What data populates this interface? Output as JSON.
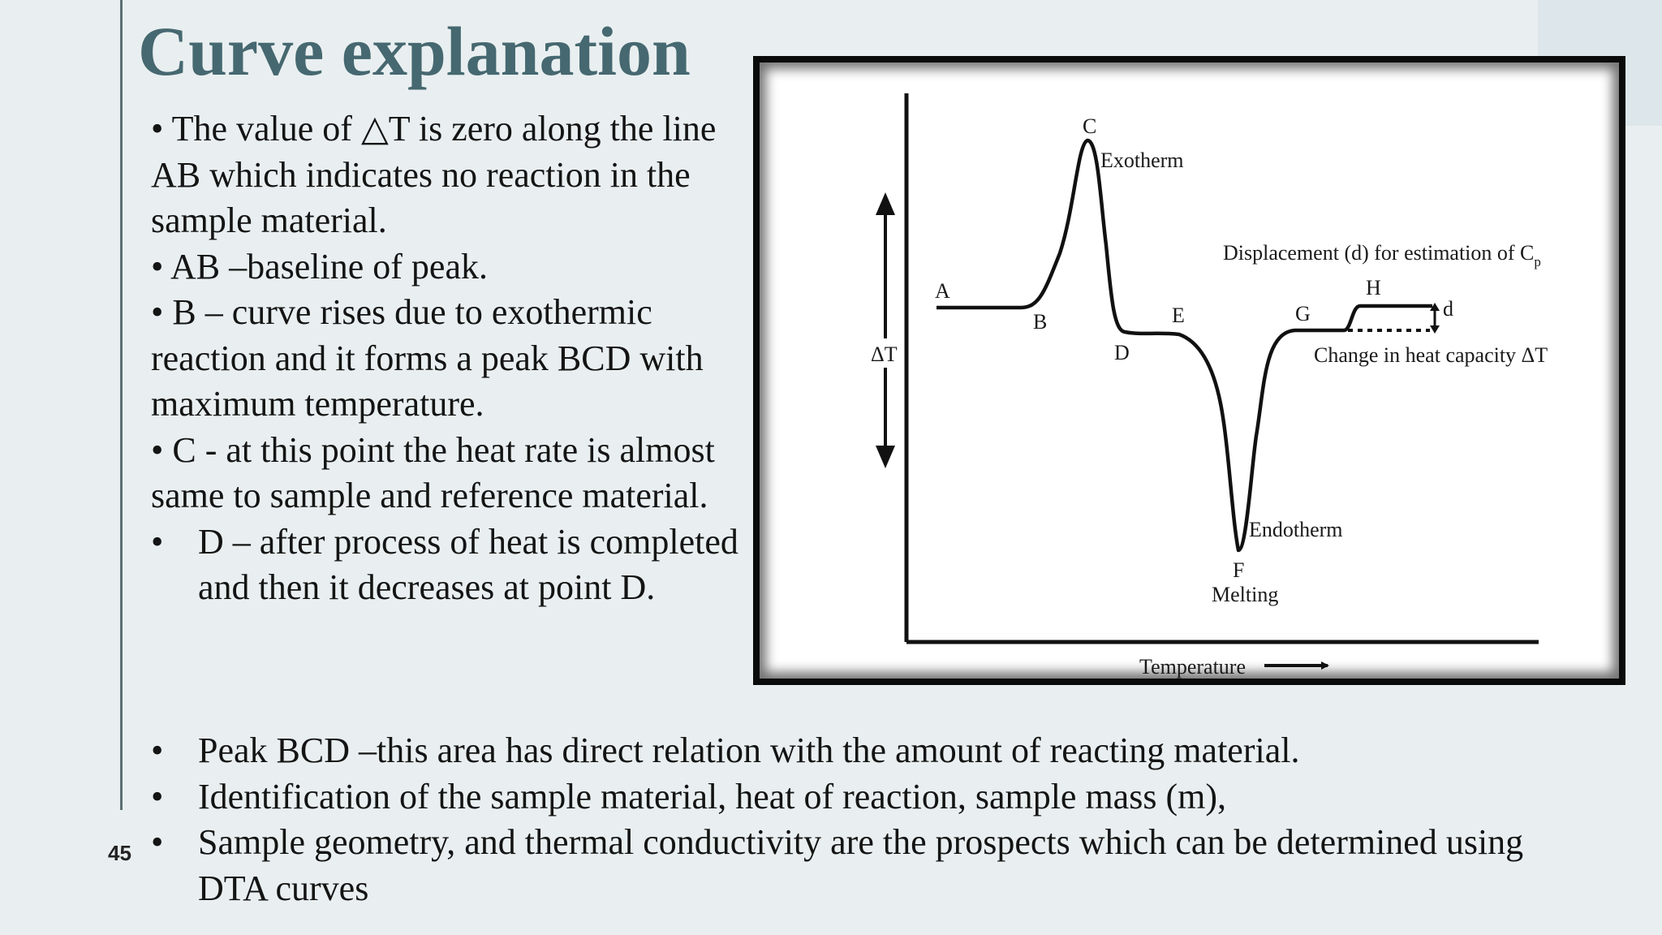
{
  "slide": {
    "title": "Curve explanation",
    "page_number": "45"
  },
  "left_text": {
    "bullet": "•",
    "p1": "• The value of △T is zero along the line AB which indicates no reaction in the sample material.",
    "p2": "• AB –baseline of peak.",
    "p3": "• B – curve rises due to exothermic reaction and it forms a peak BCD with maximum temperature.",
    "p4": "• C - at this point the heat rate is almost same to sample and reference material.",
    "p5": "D – after process of heat is completed and then it decreases at point D."
  },
  "bottom_text": {
    "item1": "Peak BCD –this area has direct relation with the amount of reacting material.",
    "item2": "Identification of the sample material, heat of reaction, sample mass (m),",
    "item3": "Sample geometry, and thermal conductivity are the prospects which can be determined using DTA curves"
  },
  "figure": {
    "y_axis_label": "ΔT",
    "x_axis_label": "Temperature",
    "point_labels": {
      "A": "A",
      "B": "B",
      "C": "C",
      "D": "D",
      "E": "E",
      "F": "F",
      "G": "G",
      "H": "H",
      "d": "d"
    },
    "exotherm": "Exotherm",
    "endotherm": "Endotherm",
    "melting": "Melting",
    "displacement": "Displacement (d) for estimation of C",
    "displacement_sub": "p",
    "heat_capacity": "Change in heat capacity ΔT"
  }
}
